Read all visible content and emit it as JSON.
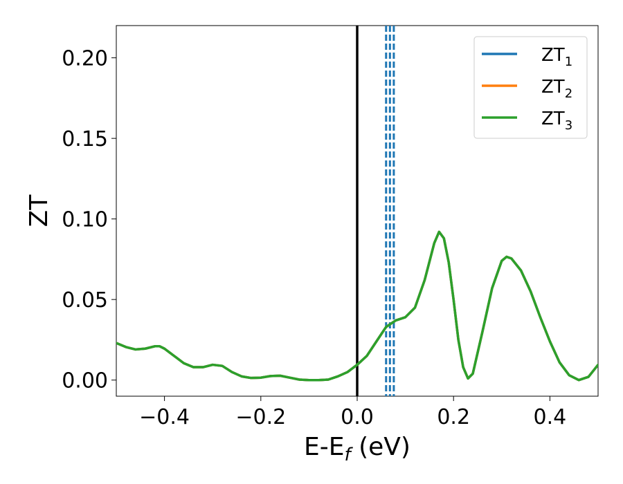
{
  "chart_data": {
    "type": "line",
    "xlabel": "E-E",
    "xlabel_sub": "f",
    "xlabel_unit": " (eV)",
    "ylabel": "ZT",
    "xlim": [
      -0.5,
      0.5
    ],
    "ylim": [
      -0.01,
      0.22
    ],
    "xticks": [
      -0.4,
      -0.2,
      0.0,
      0.2,
      0.4
    ],
    "xtick_labels": [
      "−0.4",
      "−0.2",
      "0.0",
      "0.2",
      "0.4"
    ],
    "yticks": [
      0.0,
      0.05,
      0.1,
      0.15,
      0.2
    ],
    "ytick_labels": [
      "0.00",
      "0.05",
      "0.10",
      "0.15",
      "0.20"
    ],
    "grid": false,
    "legend_position": "top-right",
    "x": [
      -0.5,
      -0.48,
      -0.46,
      -0.44,
      -0.42,
      -0.41,
      -0.4,
      -0.38,
      -0.36,
      -0.34,
      -0.32,
      -0.3,
      -0.28,
      -0.26,
      -0.24,
      -0.22,
      -0.2,
      -0.18,
      -0.16,
      -0.14,
      -0.12,
      -0.1,
      -0.08,
      -0.06,
      -0.04,
      -0.02,
      0.0,
      0.02,
      0.04,
      0.06,
      0.08,
      0.1,
      0.12,
      0.14,
      0.16,
      0.17,
      0.18,
      0.19,
      0.2,
      0.21,
      0.22,
      0.23,
      0.24,
      0.26,
      0.28,
      0.3,
      0.31,
      0.32,
      0.34,
      0.36,
      0.38,
      0.4,
      0.42,
      0.44,
      0.46,
      0.48,
      0.5
    ],
    "series": [
      {
        "name": "ZT",
        "name_sub": "1",
        "color": "#1f77b4",
        "values": [
          0.023,
          0.0205,
          0.019,
          0.0195,
          0.021,
          0.021,
          0.0195,
          0.015,
          0.0105,
          0.008,
          0.008,
          0.0095,
          0.0088,
          0.005,
          0.0023,
          0.0013,
          0.0015,
          0.0025,
          0.0027,
          0.0015,
          0.0003,
          0.0,
          0.0,
          0.0003,
          0.0023,
          0.005,
          0.0095,
          0.015,
          0.024,
          0.033,
          0.037,
          0.039,
          0.045,
          0.062,
          0.085,
          0.092,
          0.088,
          0.073,
          0.05,
          0.025,
          0.008,
          0.001,
          0.004,
          0.03,
          0.057,
          0.074,
          0.0765,
          0.0755,
          0.068,
          0.055,
          0.039,
          0.024,
          0.011,
          0.003,
          0.0,
          0.002,
          0.0095
        ]
      },
      {
        "name": "ZT",
        "name_sub": "2",
        "color": "#ff7f0e",
        "values": [
          0.023,
          0.0205,
          0.019,
          0.0195,
          0.021,
          0.021,
          0.0195,
          0.015,
          0.0105,
          0.008,
          0.008,
          0.0095,
          0.0088,
          0.005,
          0.0023,
          0.0013,
          0.0015,
          0.0025,
          0.0027,
          0.0015,
          0.0003,
          0.0,
          0.0,
          0.0003,
          0.0023,
          0.005,
          0.0095,
          0.015,
          0.024,
          0.033,
          0.037,
          0.039,
          0.045,
          0.062,
          0.085,
          0.092,
          0.088,
          0.073,
          0.05,
          0.025,
          0.008,
          0.001,
          0.004,
          0.03,
          0.057,
          0.074,
          0.0765,
          0.0755,
          0.068,
          0.055,
          0.039,
          0.024,
          0.011,
          0.003,
          0.0,
          0.002,
          0.0095
        ]
      },
      {
        "name": "ZT",
        "name_sub": "3",
        "color": "#2ca02c",
        "values": [
          0.023,
          0.0205,
          0.019,
          0.0195,
          0.021,
          0.021,
          0.0195,
          0.015,
          0.0105,
          0.008,
          0.008,
          0.0095,
          0.0088,
          0.005,
          0.0023,
          0.0013,
          0.0015,
          0.0025,
          0.0027,
          0.0015,
          0.0003,
          0.0,
          0.0,
          0.0003,
          0.0023,
          0.005,
          0.0095,
          0.015,
          0.024,
          0.033,
          0.037,
          0.039,
          0.045,
          0.062,
          0.085,
          0.092,
          0.088,
          0.073,
          0.05,
          0.025,
          0.008,
          0.001,
          0.004,
          0.03,
          0.057,
          0.074,
          0.0765,
          0.0755,
          0.068,
          0.055,
          0.039,
          0.024,
          0.011,
          0.003,
          0.0,
          0.002,
          0.0095
        ]
      }
    ],
    "vertical_lines": [
      {
        "x": 0.0,
        "color": "#000000",
        "style": "solid"
      },
      {
        "x": 0.06,
        "color": "#1f77b4",
        "style": "dashed"
      },
      {
        "x": 0.068,
        "color": "#1f77b4",
        "style": "dashed"
      },
      {
        "x": 0.076,
        "color": "#1f77b4",
        "style": "dashed"
      }
    ]
  }
}
